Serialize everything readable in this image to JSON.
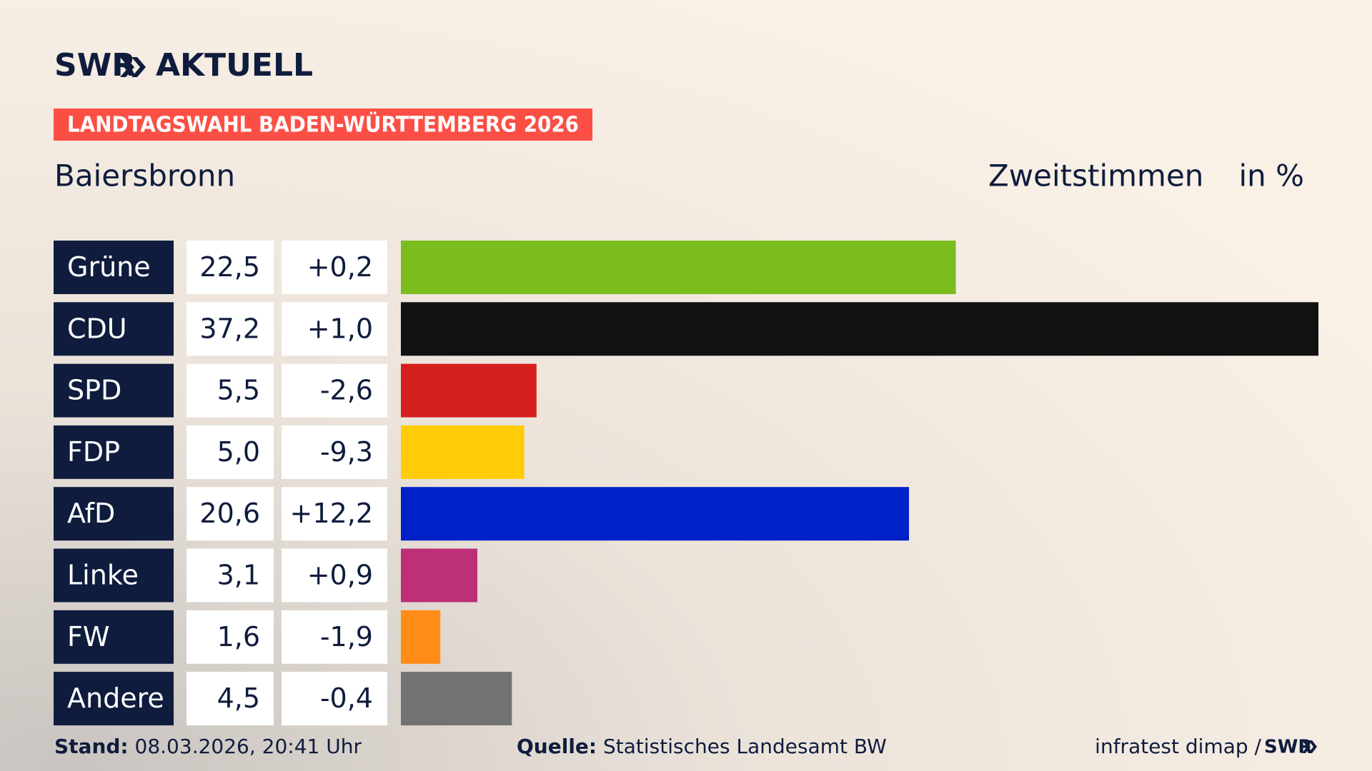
{
  "header": {
    "logo_left": "SWR",
    "logo_right": "AKTUELL",
    "banner": "LANDTAGSWAHL BADEN-WÜRTTEMBERG 2026"
  },
  "chart_data": {
    "type": "hbar",
    "title": "Baiersbronn",
    "measure": "Zweitstimmen",
    "unit": "in %",
    "categories": [
      "Grüne",
      "CDU",
      "SPD",
      "FDP",
      "AfD",
      "Linke",
      "FW",
      "Andere"
    ],
    "values": [
      22.5,
      37.2,
      5.5,
      5.0,
      20.6,
      3.1,
      1.6,
      4.5
    ],
    "value_labels": [
      "22,5",
      "37,2",
      "5,5",
      "5,0",
      "20,6",
      "3,1",
      "1,6",
      "4,5"
    ],
    "changes": [
      0.2,
      1.0,
      -2.6,
      -9.3,
      12.2,
      0.9,
      -1.9,
      -0.4
    ],
    "change_labels": [
      "+0,2",
      "+1,0",
      "-2,6",
      "-9,3",
      "+12,2",
      "+0,9",
      "-1,9",
      "-0,4"
    ],
    "colors": [
      "#7bbd1f",
      "#111111",
      "#d6201f",
      "#ffcc07",
      "#0020c8",
      "#bd2f77",
      "#ff8c17",
      "#727272"
    ]
  },
  "footer": {
    "stand_label": "Stand:",
    "stand": "08.03.2026, 20:41 Uhr",
    "source_label": "Quelle:",
    "source": "Statistisches Landesamt BW",
    "credit": "infratest dimap /",
    "credit_logo": "SWR"
  }
}
